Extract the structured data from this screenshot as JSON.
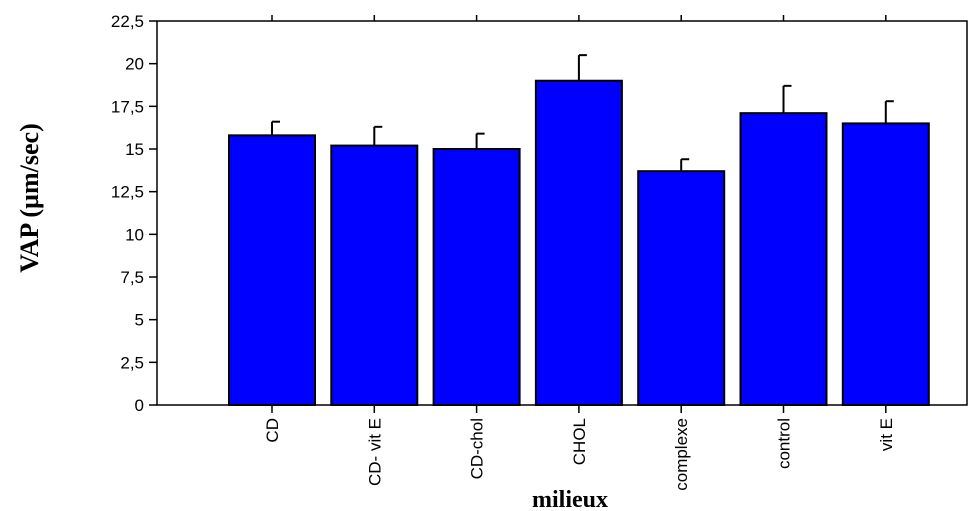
{
  "chart_data": {
    "type": "bar",
    "title": "",
    "xlabel": "milieux",
    "ylabel": "VAP (µm/sec)",
    "ylim": [
      0,
      22.5
    ],
    "yticks": [
      "0",
      "2,5",
      "5",
      "7,5",
      "10",
      "12,5",
      "15",
      "17,5",
      "20",
      "22,5"
    ],
    "ytick_values": [
      0,
      2.5,
      5,
      7.5,
      10,
      12.5,
      15,
      17.5,
      20,
      22.5
    ],
    "categories": [
      "CD",
      "CD- vit E",
      "CD-chol",
      "CHOL",
      "complexe",
      "control",
      "vit E"
    ],
    "values": [
      15.8,
      15.2,
      15.0,
      19.0,
      13.7,
      17.1,
      16.5
    ],
    "error_upper": [
      16.6,
      16.3,
      15.9,
      20.5,
      14.4,
      18.7,
      17.8
    ],
    "bar_color": "#0000ff",
    "grid": false,
    "legend": "none"
  }
}
